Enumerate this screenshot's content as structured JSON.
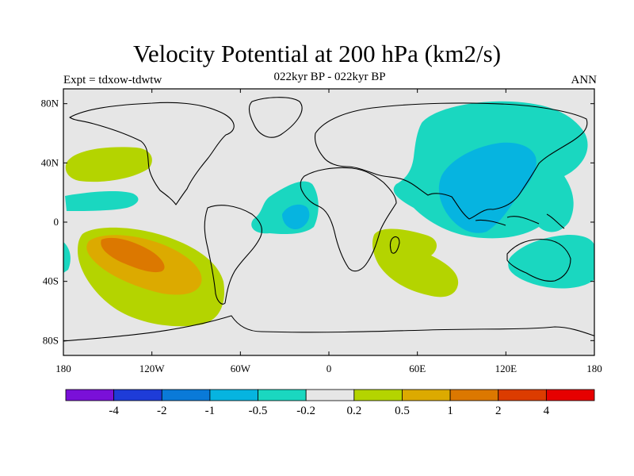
{
  "title": "Velocity Potential at 200 hPa (km2/s)",
  "subtitle": "022kyr BP - 022kyr BP",
  "left_label": "Expt = tdxow-tdwtw",
  "right_label": "ANN",
  "axes": {
    "lon_range": [
      -180,
      180
    ],
    "lat_range": [
      -90,
      90
    ],
    "y_ticks": [
      {
        "value": 80,
        "label": "80N"
      },
      {
        "value": 40,
        "label": "40N"
      },
      {
        "value": 0,
        "label": "0"
      },
      {
        "value": -40,
        "label": "40S"
      },
      {
        "value": -80,
        "label": "80S"
      }
    ],
    "x_ticks": [
      {
        "value": -180,
        "label": "180"
      },
      {
        "value": -120,
        "label": "120W"
      },
      {
        "value": -60,
        "label": "60W"
      },
      {
        "value": 0,
        "label": "0"
      },
      {
        "value": 60,
        "label": "60E"
      },
      {
        "value": 120,
        "label": "120E"
      },
      {
        "value": 180,
        "label": "180"
      }
    ]
  },
  "colorbar": {
    "colors": [
      "#7a10d8",
      "#1e3cd8",
      "#0a7ad8",
      "#06b4e0",
      "#1ad7c0",
      "#e6e6e6",
      "#b4d400",
      "#dcaa00",
      "#dc7800",
      "#dc3c00",
      "#e60000"
    ],
    "labels": [
      "-4",
      "-2",
      "-1",
      "-0.5",
      "-0.2",
      "0.2",
      "0.5",
      "1",
      "2",
      "4"
    ]
  },
  "palette": {
    "background": "#e6e6e6",
    "pos_0_2": "#b4d400",
    "pos_0_5": "#dcaa00",
    "pos_1": "#dc7800",
    "neg_0_2": "#1ad7c0",
    "neg_0_5": "#06b4e0"
  }
}
